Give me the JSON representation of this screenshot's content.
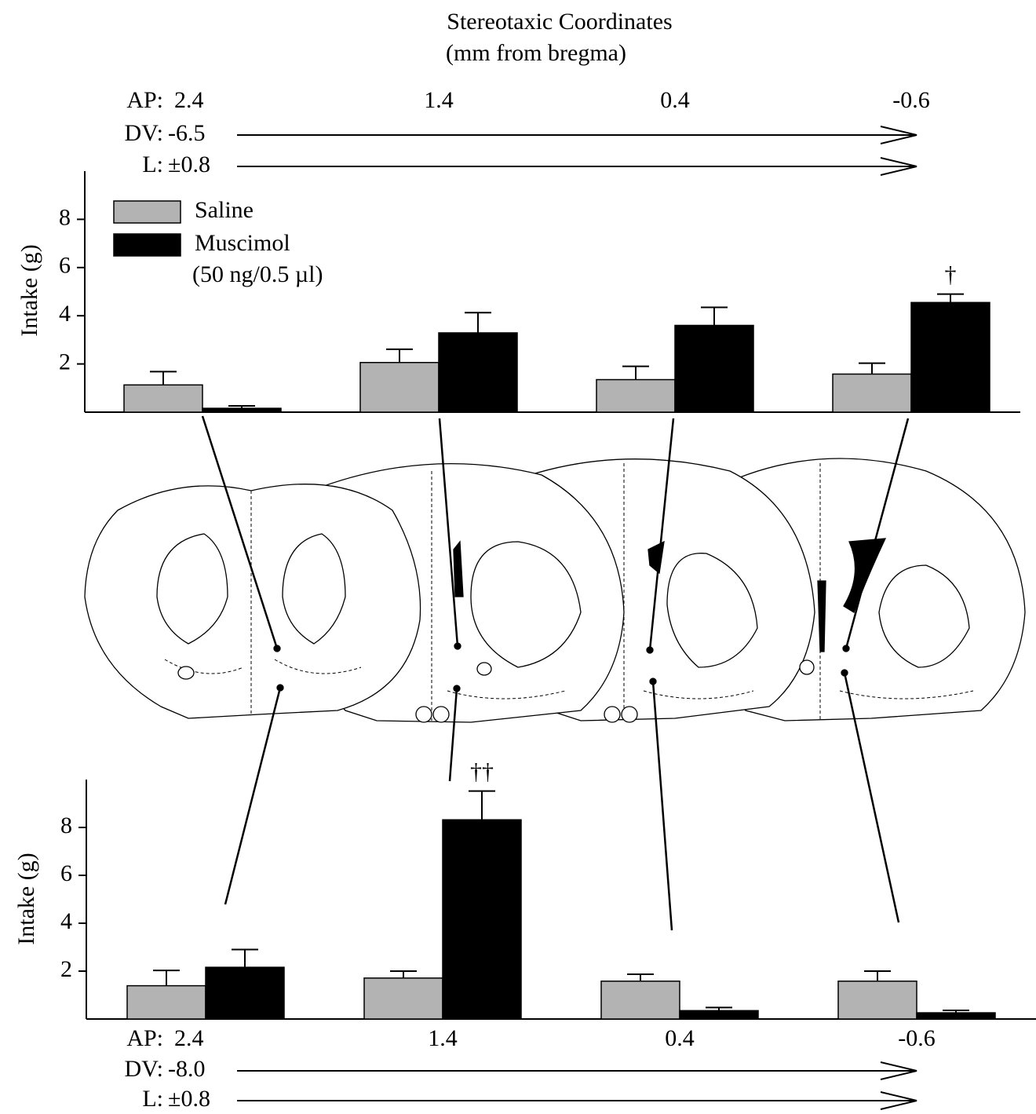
{
  "chart_data": [
    {
      "type": "bar",
      "title": "Stereotaxic Coordinates",
      "subtitle": "(mm from bregma)",
      "y_label": "Intake (g)",
      "category_label": "AP:",
      "categories": [
        "2.4",
        "1.4",
        "0.4",
        "-0.6"
      ],
      "rows": [
        {
          "label": "DV:",
          "value": "-6.5"
        },
        {
          "label": "L:",
          "value": "±0.8"
        }
      ],
      "series": [
        {
          "name": "Saline",
          "color": "#b3b3b3",
          "values": [
            1.13,
            2.06,
            1.35,
            1.58
          ],
          "errors": [
            0.55,
            0.55,
            0.55,
            0.45
          ]
        },
        {
          "name": "Muscimol",
          "dose": "(50 ng/0.5 µl)",
          "color": "#000000",
          "values": [
            0.16,
            3.29,
            3.6,
            4.55
          ],
          "errors": [
            0.1,
            0.84,
            0.75,
            0.35
          ]
        }
      ],
      "ylim": [
        0,
        10
      ],
      "yticks": [
        2,
        4,
        6,
        8
      ],
      "legend": "upper left",
      "annotations": [
        {
          "text": "†",
          "series": 1,
          "category": 3
        }
      ]
    },
    {
      "type": "bar",
      "y_label": "Intake (g)",
      "category_label": "AP:",
      "categories": [
        "2.4",
        "1.4",
        "0.4",
        "-0.6"
      ],
      "rows": [
        {
          "label": "DV:",
          "value": "-8.0"
        },
        {
          "label": "L:",
          "value": "±0.8"
        }
      ],
      "series": [
        {
          "color": "#b3b3b3",
          "values": [
            1.39,
            1.71,
            1.58,
            1.58
          ],
          "errors": [
            0.64,
            0.29,
            0.29,
            0.42
          ]
        },
        {
          "color": "#000000",
          "values": [
            2.16,
            8.32,
            0.35,
            0.26
          ],
          "errors": [
            0.74,
            1.2,
            0.13,
            0.1
          ]
        }
      ],
      "ylim": [
        0,
        10
      ],
      "yticks": [
        2,
        4,
        6,
        8
      ],
      "annotations": [
        {
          "text": "††",
          "series": 1,
          "category": 1
        }
      ]
    }
  ]
}
